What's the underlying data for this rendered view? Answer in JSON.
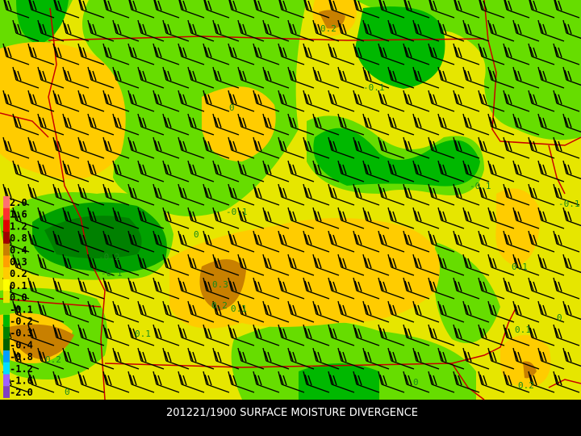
{
  "caption": "201221/1900 SURFACE MOISTURE DIVERGENCE",
  "legend": {
    "labels": [
      "2.0",
      "1.6",
      "1.2",
      "0.8",
      "0.4",
      "0.3",
      "0.2",
      "0.1",
      "0.0",
      "-0.1",
      "-0.2",
      "-0.3",
      "-0.4",
      "-0.8",
      "-1.2",
      "-1.6",
      "-2.0"
    ]
  },
  "contour_labels": [
    "0.2",
    "-0.1",
    "0",
    "-0.1",
    "-0.1",
    "0",
    "-0.2",
    "-0.1",
    "0.3",
    "0.2",
    "0.1",
    "0.1",
    "0.2",
    "0",
    "0.1",
    "0.1",
    "0.2",
    "0",
    "-0.1",
    "0"
  ]
}
